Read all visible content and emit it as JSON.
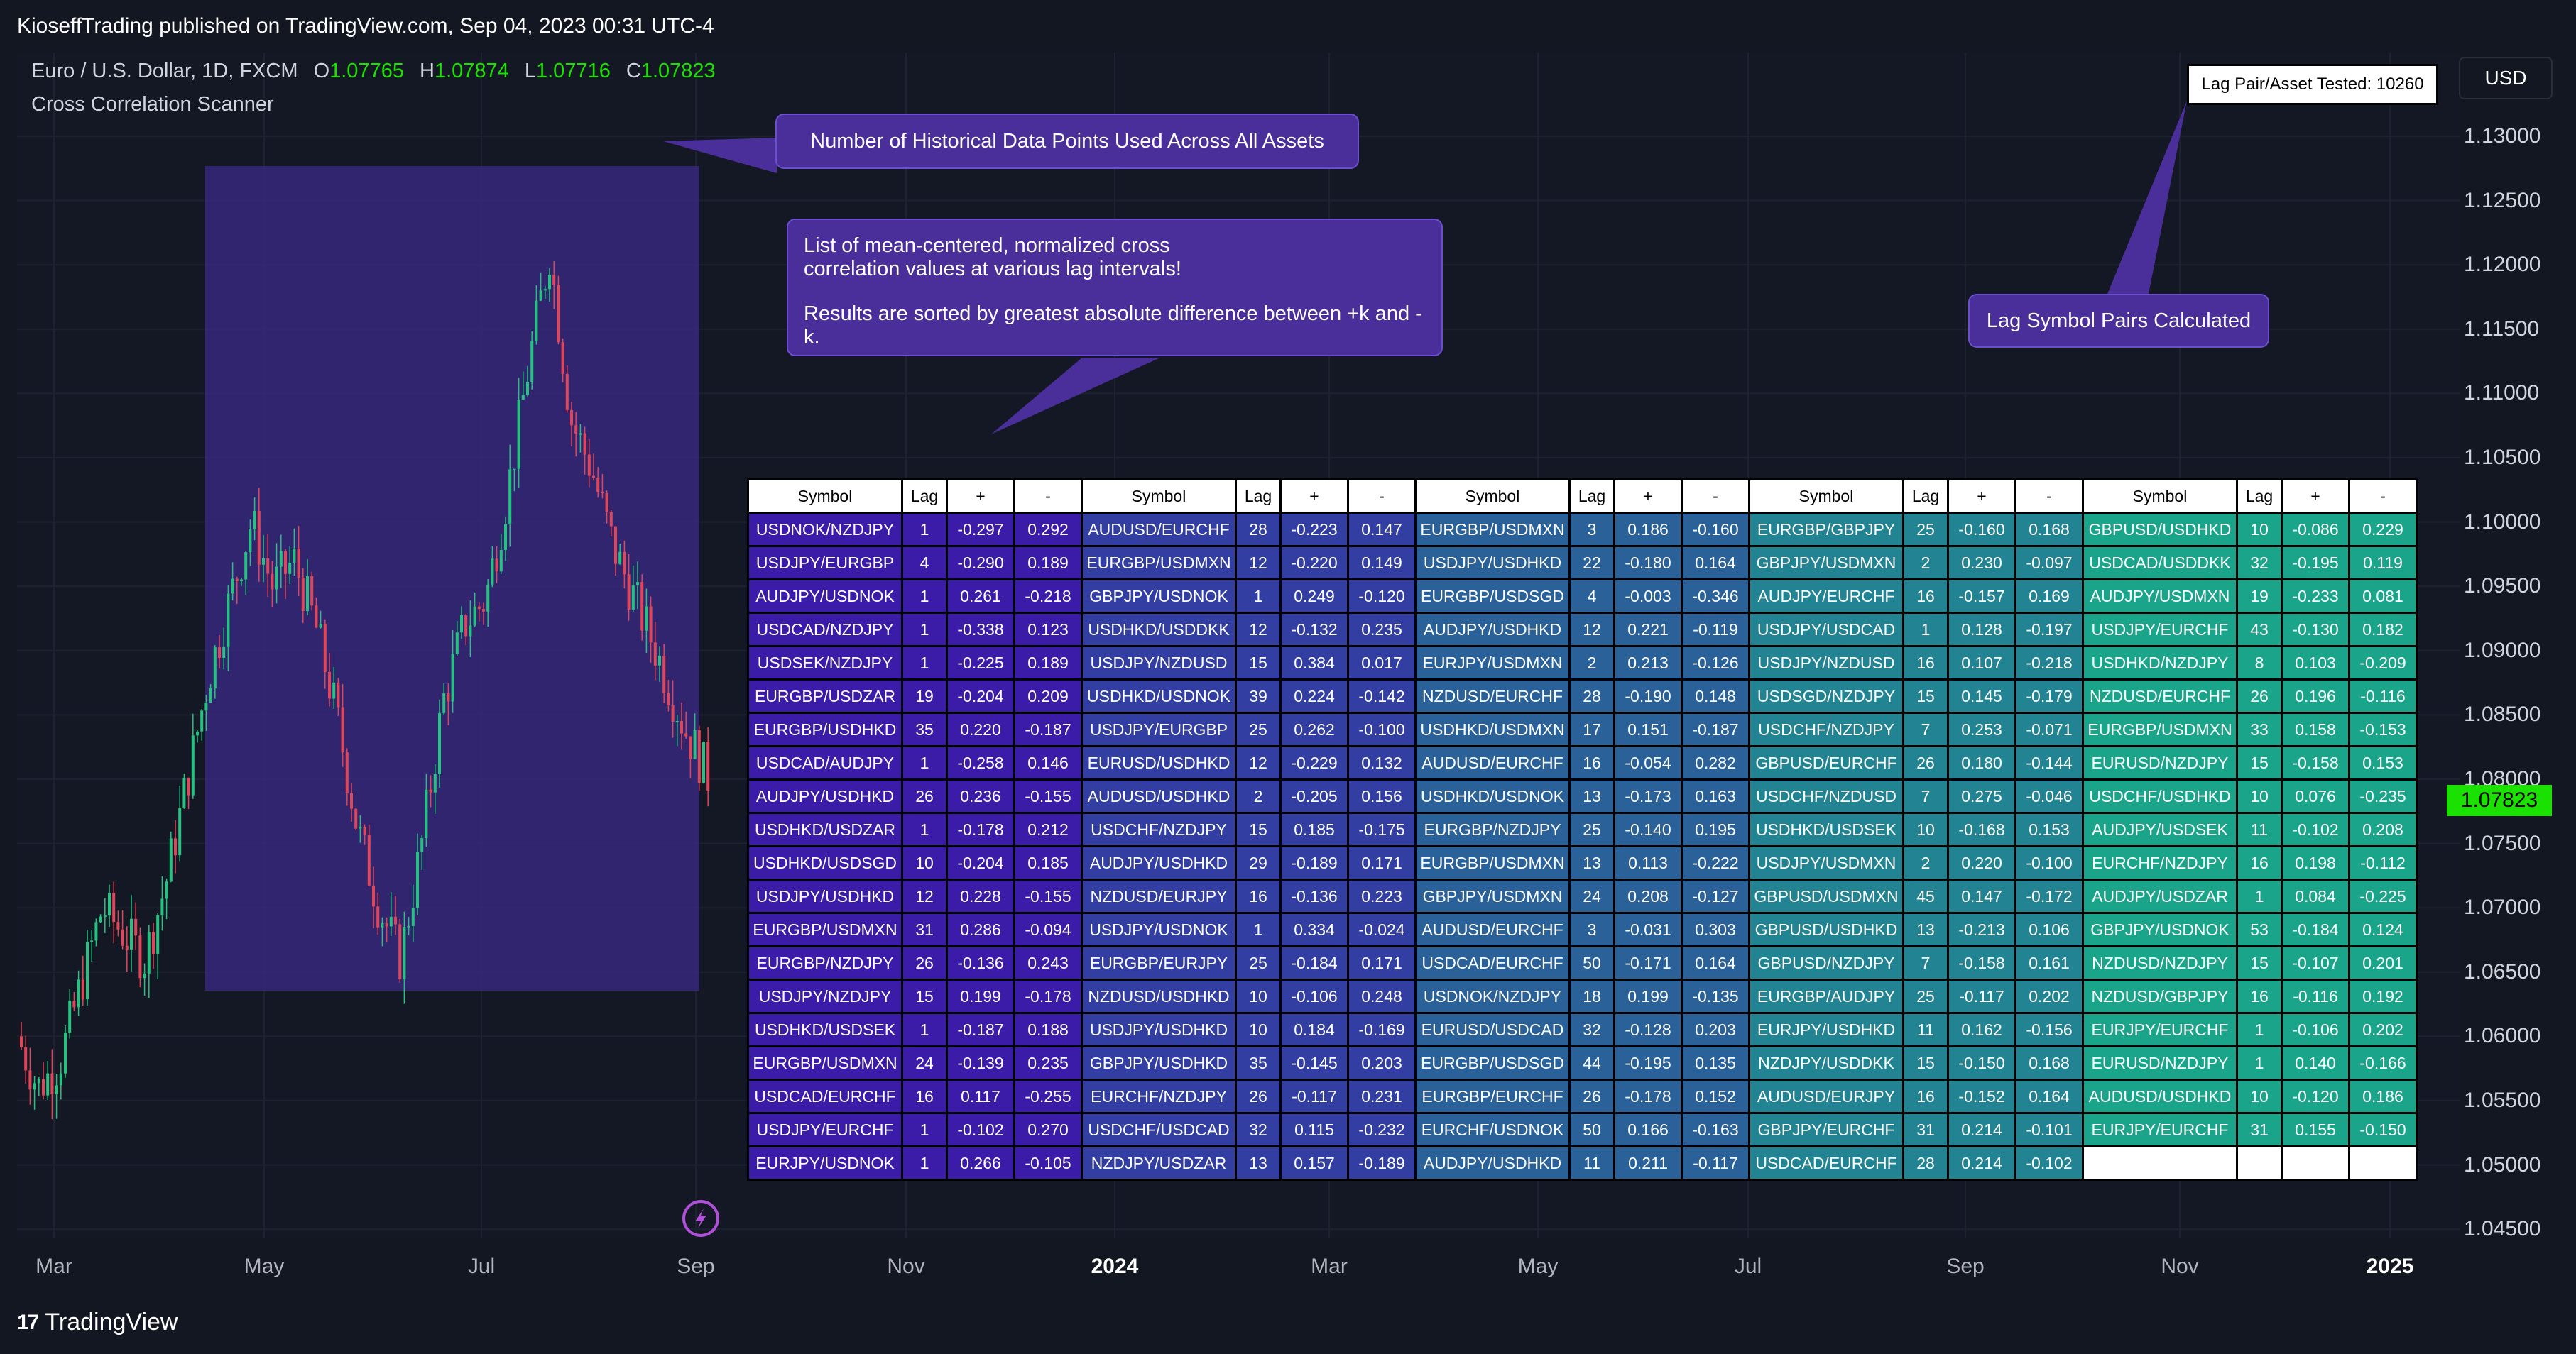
{
  "publish_bar": {
    "text": "KioseffTrading published on TradingView.com, Sep 04, 2023 00:31 UTC-4"
  },
  "legend": {
    "instrument": "Euro / U.S. Dollar, 1D, FXCM",
    "open_label": "O",
    "open": "1.07765",
    "high_label": "H",
    "high": "1.07874",
    "low_label": "L",
    "low": "1.07716",
    "close_label": "C",
    "close": "1.07823",
    "indicator": "Cross Correlation Scanner"
  },
  "callouts": {
    "data_points": "Number of Historical Data Points Used Across All Assets",
    "list_line1": "List of mean-centered, normalized cross",
    "list_line2": "correlation values at various lag intervals!",
    "list_line3": "Results are sorted by greatest absolute difference between +k and -k.",
    "lag_pairs": "Lag Symbol Pairs Calculated"
  },
  "lag_tested": "Lag Pair/Asset Tested: 10260",
  "price_axis": {
    "currency_button": "USD",
    "last_price": "1.07823",
    "ticks": [
      "1.13000",
      "1.12500",
      "1.12000",
      "1.11500",
      "1.11000",
      "1.10500",
      "1.10000",
      "1.09500",
      "1.09000",
      "1.08500",
      "1.08000",
      "1.07500",
      "1.07000",
      "1.06500",
      "1.06000",
      "1.05500",
      "1.05000",
      "1.04500"
    ]
  },
  "time_axis": {
    "labels": [
      {
        "text": "Mar",
        "bold": false
      },
      {
        "text": "May",
        "bold": false
      },
      {
        "text": "Jul",
        "bold": false
      },
      {
        "text": "Sep",
        "bold": false
      },
      {
        "text": "Nov",
        "bold": false
      },
      {
        "text": "2024",
        "bold": true
      },
      {
        "text": "Mar",
        "bold": false
      },
      {
        "text": "May",
        "bold": false
      },
      {
        "text": "Jul",
        "bold": false
      },
      {
        "text": "Sep",
        "bold": false
      },
      {
        "text": "Nov",
        "bold": false
      },
      {
        "text": "2025",
        "bold": true
      }
    ]
  },
  "footer": {
    "logo": "TradingView"
  },
  "colors": {
    "background": "#131722",
    "up": "#26c281",
    "down": "#e0465a",
    "highlight_box": "#3c2a88",
    "callout": "#4a2f9a",
    "last_price": "#1ae100",
    "gradient_start": "#3a1ca8",
    "gradient_end": "#1aa58a"
  },
  "table": {
    "headers": [
      "Symbol",
      "Lag",
      "+",
      "-"
    ],
    "groups": [
      [
        [
          "USDNOK/NZDJPY",
          "1",
          "-0.297",
          "0.292"
        ],
        [
          "USDJPY/EURGBP",
          "4",
          "-0.290",
          "0.189"
        ],
        [
          "AUDJPY/USDNOK",
          "1",
          "0.261",
          "-0.218"
        ],
        [
          "USDCAD/NZDJPY",
          "1",
          "-0.338",
          "0.123"
        ],
        [
          "USDSEK/NZDJPY",
          "1",
          "-0.225",
          "0.189"
        ],
        [
          "EURGBP/USDZAR",
          "19",
          "-0.204",
          "0.209"
        ],
        [
          "EURGBP/USDHKD",
          "35",
          "0.220",
          "-0.187"
        ],
        [
          "USDCAD/AUDJPY",
          "1",
          "-0.258",
          "0.146"
        ],
        [
          "AUDJPY/USDHKD",
          "26",
          "0.236",
          "-0.155"
        ],
        [
          "USDHKD/USDZAR",
          "1",
          "-0.178",
          "0.212"
        ],
        [
          "USDHKD/USDSGD",
          "10",
          "-0.204",
          "0.185"
        ],
        [
          "USDJPY/USDHKD",
          "12",
          "0.228",
          "-0.155"
        ],
        [
          "EURGBP/USDMXN",
          "31",
          "0.286",
          "-0.094"
        ],
        [
          "EURGBP/NZDJPY",
          "26",
          "-0.136",
          "0.243"
        ],
        [
          "USDJPY/NZDJPY",
          "15",
          "0.199",
          "-0.178"
        ],
        [
          "USDHKD/USDSEK",
          "1",
          "-0.187",
          "0.188"
        ],
        [
          "EURGBP/USDMXN",
          "24",
          "-0.139",
          "0.235"
        ],
        [
          "USDCAD/EURCHF",
          "16",
          "0.117",
          "-0.255"
        ],
        [
          "USDJPY/EURCHF",
          "1",
          "-0.102",
          "0.270"
        ],
        [
          "EURJPY/USDNOK",
          "1",
          "0.266",
          "-0.105"
        ]
      ],
      [
        [
          "AUDUSD/EURCHF",
          "28",
          "-0.223",
          "0.147"
        ],
        [
          "EURGBP/USDMXN",
          "12",
          "-0.220",
          "0.149"
        ],
        [
          "GBPJPY/USDNOK",
          "1",
          "0.249",
          "-0.120"
        ],
        [
          "USDHKD/USDDKK",
          "12",
          "-0.132",
          "0.235"
        ],
        [
          "USDJPY/NZDUSD",
          "15",
          "0.384",
          "0.017"
        ],
        [
          "USDHKD/USDNOK",
          "39",
          "0.224",
          "-0.142"
        ],
        [
          "USDJPY/EURGBP",
          "25",
          "0.262",
          "-0.100"
        ],
        [
          "EURUSD/USDHKD",
          "12",
          "-0.229",
          "0.132"
        ],
        [
          "AUDUSD/USDHKD",
          "2",
          "-0.205",
          "0.156"
        ],
        [
          "USDCHF/NZDJPY",
          "15",
          "0.185",
          "-0.175"
        ],
        [
          "AUDJPY/USDHKD",
          "29",
          "-0.189",
          "0.171"
        ],
        [
          "NZDUSD/EURJPY",
          "16",
          "-0.136",
          "0.223"
        ],
        [
          "USDJPY/USDNOK",
          "1",
          "0.334",
          "-0.024"
        ],
        [
          "EURGBP/EURJPY",
          "25",
          "-0.184",
          "0.171"
        ],
        [
          "NZDUSD/USDHKD",
          "10",
          "-0.106",
          "0.248"
        ],
        [
          "USDJPY/USDHKD",
          "10",
          "0.184",
          "-0.169"
        ],
        [
          "GBPJPY/USDHKD",
          "35",
          "-0.145",
          "0.203"
        ],
        [
          "EURCHF/NZDJPY",
          "26",
          "-0.117",
          "0.231"
        ],
        [
          "USDCHF/USDCAD",
          "32",
          "0.115",
          "-0.232"
        ],
        [
          "NZDJPY/USDZAR",
          "13",
          "0.157",
          "-0.189"
        ]
      ],
      [
        [
          "EURGBP/USDMXN",
          "3",
          "0.186",
          "-0.160"
        ],
        [
          "USDJPY/USDHKD",
          "22",
          "-0.180",
          "0.164"
        ],
        [
          "EURGBP/USDSGD",
          "4",
          "-0.003",
          "-0.346"
        ],
        [
          "AUDJPY/USDHKD",
          "12",
          "0.221",
          "-0.119"
        ],
        [
          "EURJPY/USDMXN",
          "2",
          "0.213",
          "-0.126"
        ],
        [
          "NZDUSD/EURCHF",
          "28",
          "-0.190",
          "0.148"
        ],
        [
          "USDHKD/USDMXN",
          "17",
          "0.151",
          "-0.187"
        ],
        [
          "AUDUSD/EURCHF",
          "16",
          "-0.054",
          "0.282"
        ],
        [
          "USDHKD/USDNOK",
          "13",
          "-0.173",
          "0.163"
        ],
        [
          "EURGBP/NZDJPY",
          "25",
          "-0.140",
          "0.195"
        ],
        [
          "EURGBP/USDMXN",
          "13",
          "0.113",
          "-0.222"
        ],
        [
          "GBPJPY/USDMXN",
          "24",
          "0.208",
          "-0.127"
        ],
        [
          "AUDUSD/EURCHF",
          "3",
          "-0.031",
          "0.303"
        ],
        [
          "USDCAD/EURCHF",
          "50",
          "-0.171",
          "0.164"
        ],
        [
          "USDNOK/NZDJPY",
          "18",
          "0.199",
          "-0.135"
        ],
        [
          "EURUSD/USDCAD",
          "32",
          "-0.128",
          "0.203"
        ],
        [
          "EURGBP/USDSGD",
          "44",
          "-0.195",
          "0.135"
        ],
        [
          "EURGBP/EURCHF",
          "26",
          "-0.178",
          "0.152"
        ],
        [
          "EURCHF/USDNOK",
          "50",
          "0.166",
          "-0.163"
        ],
        [
          "AUDJPY/USDHKD",
          "11",
          "0.211",
          "-0.117"
        ]
      ],
      [
        [
          "EURGBP/GBPJPY",
          "25",
          "-0.160",
          "0.168"
        ],
        [
          "GBPJPY/USDMXN",
          "2",
          "0.230",
          "-0.097"
        ],
        [
          "AUDJPY/EURCHF",
          "16",
          "-0.157",
          "0.169"
        ],
        [
          "USDJPY/USDCAD",
          "1",
          "0.128",
          "-0.197"
        ],
        [
          "USDJPY/NZDUSD",
          "16",
          "0.107",
          "-0.218"
        ],
        [
          "USDSGD/NZDJPY",
          "15",
          "0.145",
          "-0.179"
        ],
        [
          "USDCHF/NZDJPY",
          "7",
          "0.253",
          "-0.071"
        ],
        [
          "GBPUSD/EURCHF",
          "26",
          "0.180",
          "-0.144"
        ],
        [
          "USDCHF/NZDUSD",
          "7",
          "0.275",
          "-0.046"
        ],
        [
          "USDHKD/USDSEK",
          "10",
          "-0.168",
          "0.153"
        ],
        [
          "USDJPY/USDMXN",
          "2",
          "0.220",
          "-0.100"
        ],
        [
          "GBPUSD/USDMXN",
          "45",
          "0.147",
          "-0.172"
        ],
        [
          "GBPUSD/USDHKD",
          "13",
          "-0.213",
          "0.106"
        ],
        [
          "GBPUSD/NZDJPY",
          "7",
          "-0.158",
          "0.161"
        ],
        [
          "EURGBP/AUDJPY",
          "25",
          "-0.117",
          "0.202"
        ],
        [
          "EURJPY/USDHKD",
          "11",
          "0.162",
          "-0.156"
        ],
        [
          "NZDJPY/USDDKK",
          "15",
          "-0.150",
          "0.168"
        ],
        [
          "AUDUSD/EURJPY",
          "16",
          "-0.152",
          "0.164"
        ],
        [
          "GBPJPY/EURCHF",
          "31",
          "0.214",
          "-0.101"
        ],
        [
          "USDCAD/EURCHF",
          "28",
          "0.214",
          "-0.102"
        ]
      ],
      [
        [
          "GBPUSD/USDHKD",
          "10",
          "-0.086",
          "0.229"
        ],
        [
          "USDCAD/USDDKK",
          "32",
          "-0.195",
          "0.119"
        ],
        [
          "AUDJPY/USDMXN",
          "19",
          "-0.233",
          "0.081"
        ],
        [
          "USDJPY/EURCHF",
          "43",
          "-0.130",
          "0.182"
        ],
        [
          "USDHKD/NZDJPY",
          "8",
          "0.103",
          "-0.209"
        ],
        [
          "NZDUSD/EURCHF",
          "26",
          "0.196",
          "-0.116"
        ],
        [
          "EURGBP/USDMXN",
          "33",
          "0.158",
          "-0.153"
        ],
        [
          "EURUSD/NZDJPY",
          "15",
          "-0.158",
          "0.153"
        ],
        [
          "USDCHF/USDHKD",
          "10",
          "0.076",
          "-0.235"
        ],
        [
          "AUDJPY/USDSEK",
          "11",
          "-0.102",
          "0.208"
        ],
        [
          "EURCHF/NZDJPY",
          "16",
          "0.198",
          "-0.112"
        ],
        [
          "AUDJPY/USDZAR",
          "1",
          "0.084",
          "-0.225"
        ],
        [
          "GBPJPY/USDNOK",
          "53",
          "-0.184",
          "0.124"
        ],
        [
          "NZDUSD/NZDJPY",
          "15",
          "-0.107",
          "0.201"
        ],
        [
          "NZDUSD/GBPJPY",
          "16",
          "-0.116",
          "0.192"
        ],
        [
          "EURJPY/EURCHF",
          "1",
          "-0.106",
          "0.202"
        ],
        [
          "EURUSD/NZDJPY",
          "1",
          "0.140",
          "-0.166"
        ],
        [
          "AUDUSD/USDHKD",
          "10",
          "-0.120",
          "0.186"
        ],
        [
          "EURJPY/EURCHF",
          "31",
          "0.155",
          "-0.150"
        ],
        [
          "",
          "",
          "",
          ""
        ]
      ]
    ]
  }
}
